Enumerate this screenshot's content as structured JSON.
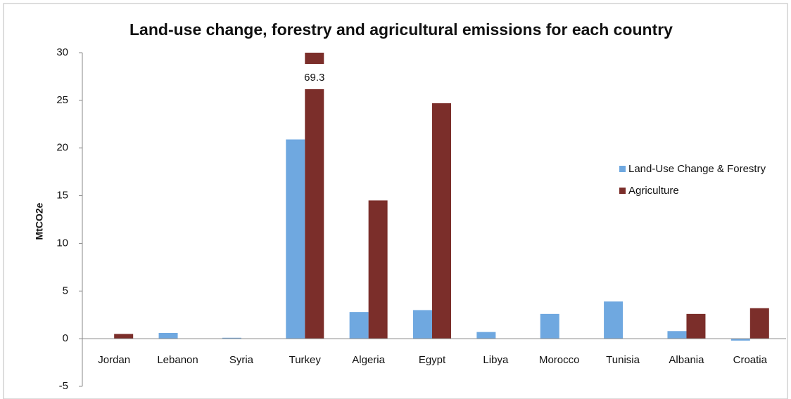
{
  "chart_data": {
    "type": "bar",
    "title": "Land-use change, forestry and agricultural emissions for each country",
    "y_label": "MtCO2e",
    "categories": [
      "Jordan",
      "Lebanon",
      "Syria",
      "Turkey",
      "Algeria",
      "Egypt",
      "Libya",
      "Morocco",
      "Tunisia",
      "Albania",
      "Croatia"
    ],
    "series": [
      {
        "name": "Land-Use Change & Forestry",
        "color": "#6fa8e0",
        "values": [
          0,
          0.6,
          0.1,
          20.9,
          2.8,
          3.0,
          0.7,
          2.6,
          3.9,
          0.8,
          -0.2
        ]
      },
      {
        "name": "Agriculture",
        "color": "#7b2e2a",
        "values": [
          0.5,
          0,
          0,
          69.3,
          14.5,
          24.7,
          0,
          0,
          0,
          2.6,
          3.2
        ],
        "value_labels": [
          null,
          null,
          null,
          "69.3",
          null,
          null,
          null,
          null,
          null,
          null,
          null
        ]
      }
    ],
    "ylim": [
      -5,
      30
    ],
    "yticks": [
      -5,
      0,
      5,
      10,
      15,
      20,
      25,
      30
    ],
    "legend": "right",
    "grid": false
  }
}
